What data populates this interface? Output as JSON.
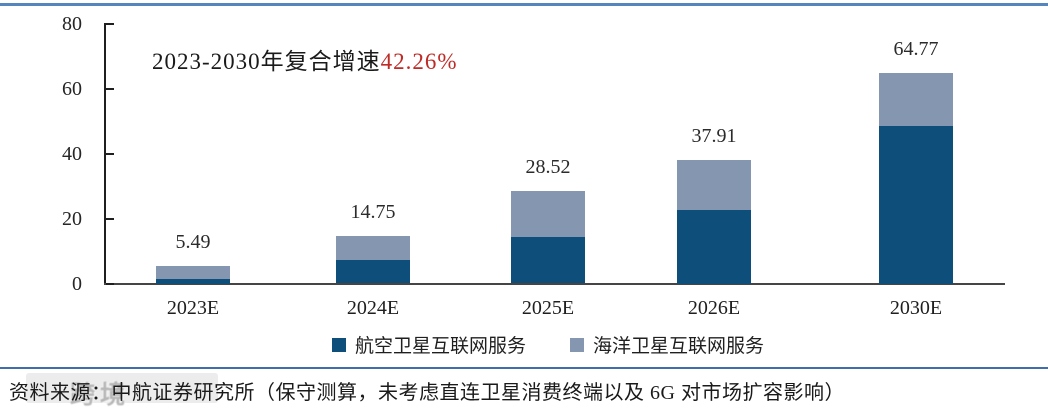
{
  "chart_data": {
    "type": "bar",
    "stacked": true,
    "title": "2023-2030年复合增速42.26%",
    "annotation": {
      "text_black": "2023-2030年复合增速",
      "text_red": "42.26%",
      "red_color": "#bf2b26"
    },
    "categories": [
      "2023E",
      "2024E",
      "2025E",
      "2026E",
      "2030E"
    ],
    "series": [
      {
        "name": "航空卫星互联网服务",
        "color": "#0d4f7a",
        "values": [
          1.5,
          7.3,
          14.37,
          22.5,
          48.5
        ]
      },
      {
        "name": "海洋卫星互联网服务",
        "color": "#8496b0",
        "values": [
          3.99,
          7.45,
          14.15,
          15.41,
          16.27
        ]
      }
    ],
    "totals": [
      5.49,
      14.75,
      28.52,
      37.91,
      64.77
    ],
    "ylim": [
      0,
      80
    ],
    "y_ticks": [
      0,
      20,
      40,
      60,
      80
    ],
    "grid": false,
    "legend_position": "bottom"
  },
  "footer": {
    "source": "资料来源：中航证券研究所（保守测算，未考虑直连卫星消费终端以及 6G 对市场扩容影响）",
    "watermark": "跨境"
  }
}
